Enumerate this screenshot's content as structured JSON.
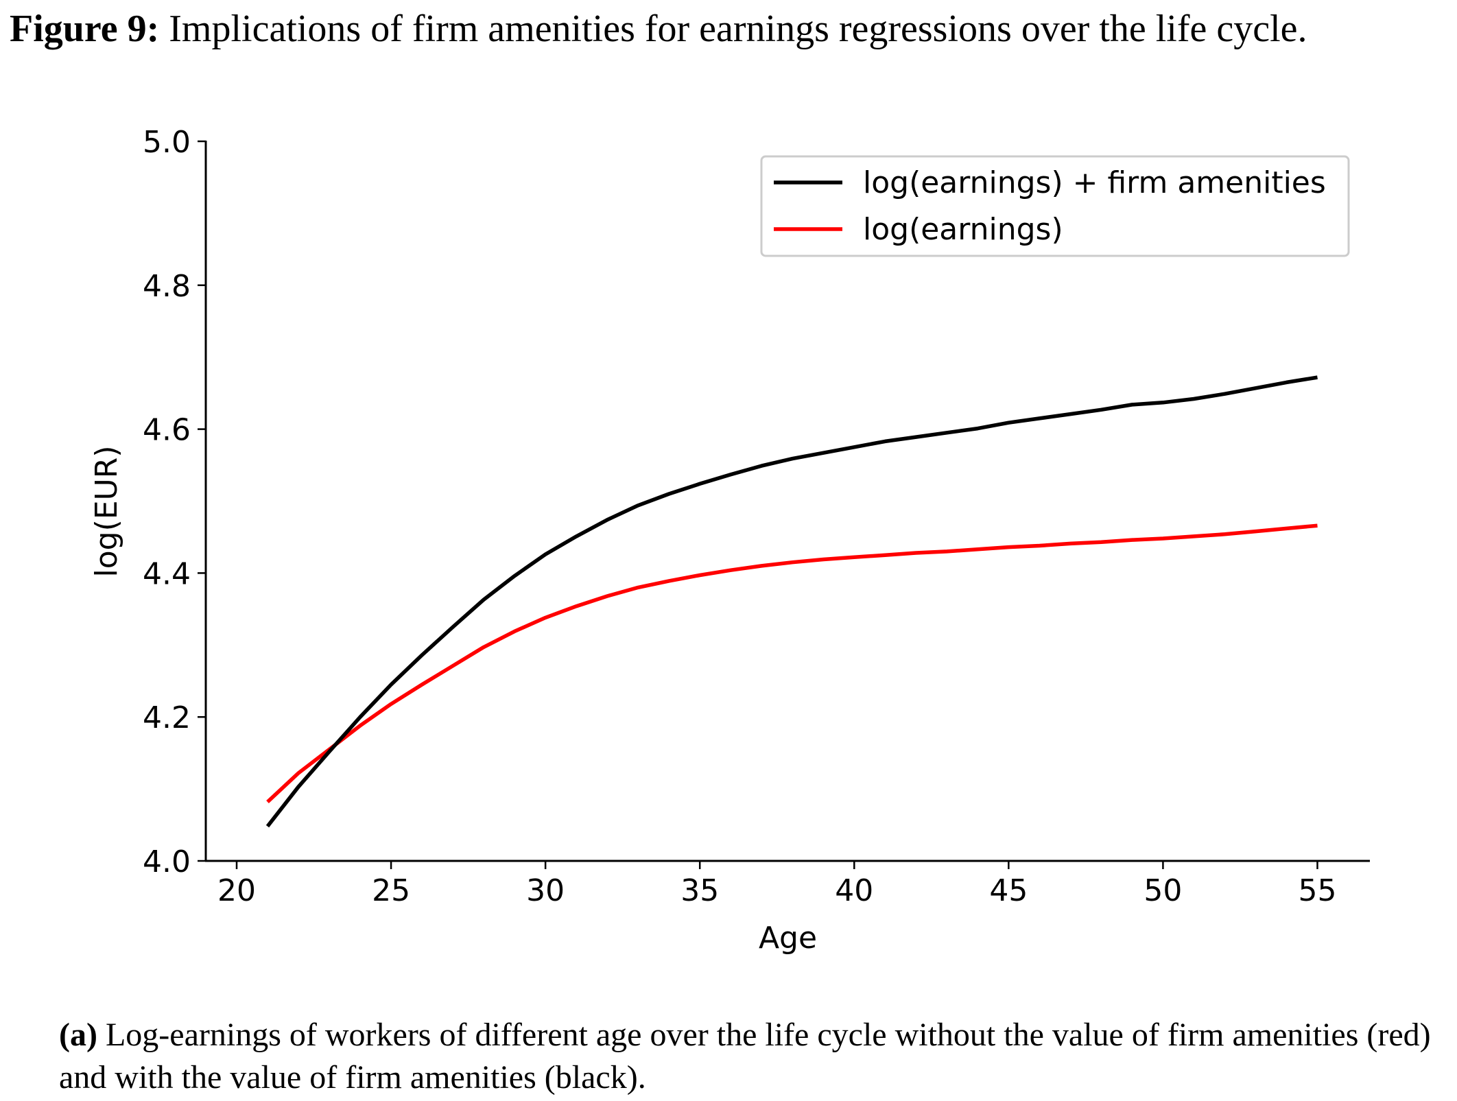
{
  "figure": {
    "label": "Figure 9:",
    "title": "Implications of firm amenities for earnings regressions over the life cycle."
  },
  "caption": {
    "label": "(a)",
    "text": "Log-earnings of workers of different age over the life cycle without the value of firm amenities (red) and with the value of firm amenities (black)."
  },
  "chart_data": {
    "type": "line",
    "xlabel": "Age",
    "ylabel": "log(EUR)",
    "xlim": [
      19,
      56.7
    ],
    "ylim": [
      4.0,
      5.0
    ],
    "xticks": [
      20,
      25,
      30,
      35,
      40,
      45,
      50,
      55
    ],
    "yticks": [
      4.0,
      4.2,
      4.4,
      4.6,
      4.8,
      5.0
    ],
    "ytick_labels": [
      "4.0",
      "4.2",
      "4.4",
      "4.6",
      "4.8",
      "5.0"
    ],
    "legend_position": "top-right",
    "grid": false,
    "x": [
      21,
      22,
      23,
      24,
      25,
      26,
      27,
      28,
      29,
      30,
      31,
      32,
      33,
      34,
      35,
      36,
      37,
      38,
      39,
      40,
      41,
      42,
      43,
      44,
      45,
      46,
      47,
      48,
      49,
      50,
      51,
      52,
      53,
      54,
      55
    ],
    "series": [
      {
        "name": "log(earnings) + firm amenities",
        "color": "#000000",
        "values": [
          4.048,
          4.103,
          4.152,
          4.2,
          4.245,
          4.286,
          4.325,
          4.363,
          4.396,
          4.426,
          4.451,
          4.474,
          4.494,
          4.51,
          4.524,
          4.537,
          4.549,
          4.559,
          4.567,
          4.575,
          4.583,
          4.589,
          4.595,
          4.601,
          4.609,
          4.615,
          4.621,
          4.627,
          4.634,
          4.637,
          4.642,
          4.649,
          4.657,
          4.665,
          4.672
        ]
      },
      {
        "name": "log(earnings)",
        "color": "#ff0000",
        "values": [
          4.082,
          4.122,
          4.155,
          4.188,
          4.218,
          4.245,
          4.271,
          4.297,
          4.319,
          4.338,
          4.354,
          4.368,
          4.38,
          4.389,
          4.397,
          4.404,
          4.41,
          4.415,
          4.419,
          4.422,
          4.425,
          4.428,
          4.43,
          4.433,
          4.436,
          4.438,
          4.441,
          4.443,
          4.446,
          4.448,
          4.451,
          4.454,
          4.458,
          4.462,
          4.466
        ]
      }
    ]
  }
}
